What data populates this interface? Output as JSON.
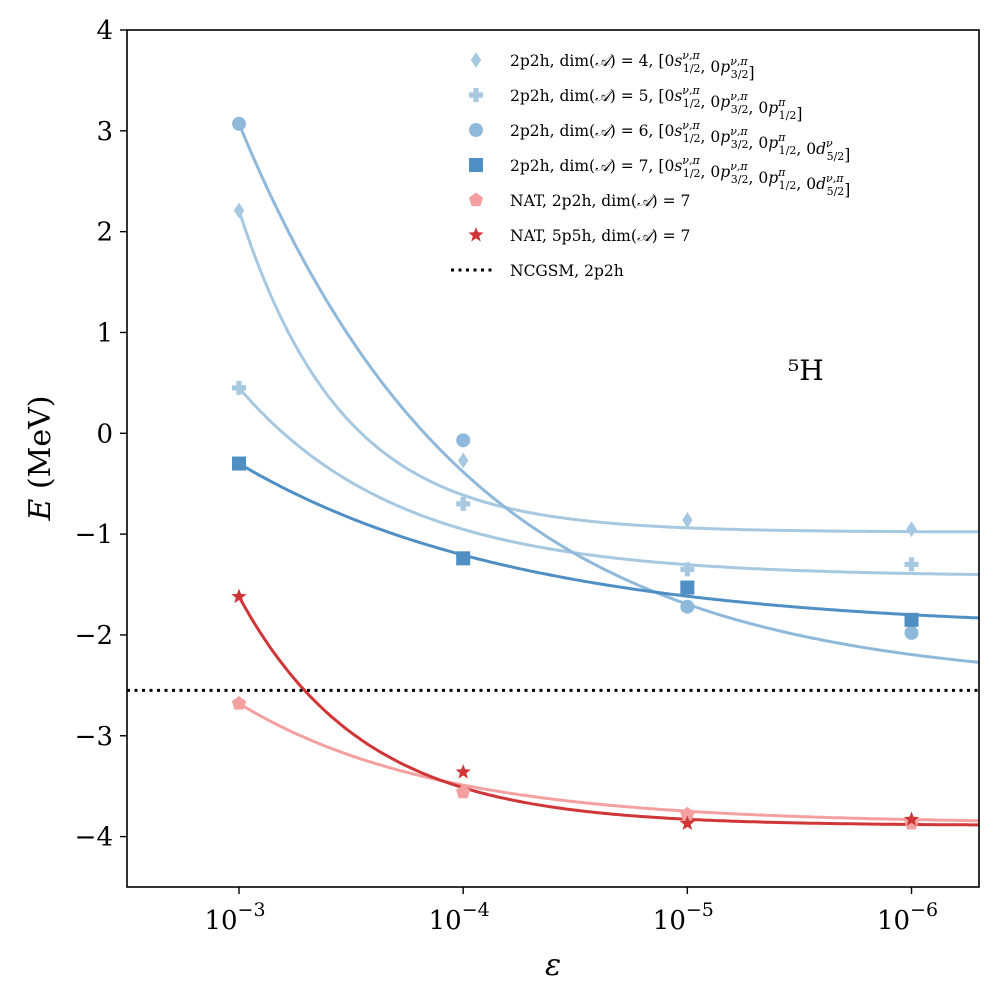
{
  "chart_data": {
    "type": "line",
    "title": "",
    "annotation": {
      "nucleus_label": "⁵H"
    },
    "xlabel": "ε",
    "ylabel_var": "E",
    "ylabel_unit": " (MeV)",
    "x_scale": "log",
    "x_reversed": true,
    "x": [
      0.001,
      0.0001,
      1e-05,
      1e-06
    ],
    "xlim": [
      0.00316,
      5e-07
    ],
    "x_tick_values": [
      0.001,
      0.0001,
      1e-05,
      1e-06
    ],
    "x_tick_exponents": [
      "−3",
      "−4",
      "−5",
      "−6"
    ],
    "x_tick_base": "10",
    "ylim": [
      -4.5,
      4.0
    ],
    "y_ticks": [
      4,
      3,
      2,
      1,
      0,
      -1,
      -2,
      -3,
      -4
    ],
    "y_tick_labels": [
      "4",
      "3",
      "2",
      "1",
      "0",
      "−1",
      "−2",
      "−3",
      "−4"
    ],
    "grid": false,
    "legend_position": "top-right",
    "series": [
      {
        "name": "2p2h, dim(𝒜) = 4, [0sν,π 1/2, 0pν,π 3/2]",
        "legend": {
          "prefix": "2p2h, dim(",
          "A": "𝒜",
          "eq": ") = 4, [",
          "orbits": [
            {
              "n": "0",
              "l": "s",
              "sup": "ν,π",
              "sub": "1/2"
            },
            {
              "n": "0",
              "l": "p",
              "sup": "ν,π",
              "sub": "3/2"
            }
          ]
        },
        "marker": "diamond",
        "color": "#a6c8e0",
        "values": [
          2.21,
          -0.27,
          -0.86,
          -0.95
        ],
        "fit": {
          "a": -0.98,
          "b": 3.19,
          "r": 0.115
        }
      },
      {
        "name": "2p2h, dim(𝒜) = 5, [0sν,π 1/2, 0pν,π 3/2, 0pπ 1/2]",
        "legend": {
          "prefix": "2p2h, dim(",
          "A": "𝒜",
          "eq": ") = 5, [",
          "orbits": [
            {
              "n": "0",
              "l": "s",
              "sup": "ν,π",
              "sub": "1/2"
            },
            {
              "n": "0",
              "l": "p",
              "sup": "ν,π",
              "sub": "3/2"
            },
            {
              "n": "0",
              "l": "p",
              "sup": "π",
              "sub": "1/2"
            }
          ]
        },
        "marker": "plus",
        "color": "#a6c8e0",
        "values": [
          0.45,
          -0.7,
          -1.35,
          -1.3
        ],
        "fit": {
          "a": -1.42,
          "b": 1.87,
          "r": 0.25
        }
      },
      {
        "name": "2p2h, dim(𝒜) = 6, [0sν,π 1/2, 0pν,π 3/2, 0pπ 1/2, 0dν 5/2]",
        "legend": {
          "prefix": "2p2h, dim(",
          "A": "𝒜",
          "eq": ") = 6, [",
          "orbits": [
            {
              "n": "0",
              "l": "s",
              "sup": "ν,π",
              "sub": "1/2"
            },
            {
              "n": "0",
              "l": "p",
              "sup": "ν,π",
              "sub": "3/2"
            },
            {
              "n": "0",
              "l": "p",
              "sup": "π",
              "sub": "1/2"
            },
            {
              "n": "0",
              "l": "d",
              "sup": "ν",
              "sub": "5/2"
            }
          ]
        },
        "marker": "circle",
        "color": "#8fb9db",
        "values": [
          3.07,
          -0.07,
          -1.72,
          -1.98
        ],
        "fit": {
          "a": -2.5,
          "b": 5.57,
          "r": 0.38
        }
      },
      {
        "name": "2p2h, dim(𝒜) = 7, [0sν,π 1/2, 0pν,π 3/2, 0pπ 1/2, 0dν,π 5/2]",
        "legend": {
          "prefix": "2p2h, dim(",
          "A": "𝒜",
          "eq": ") = 7, [",
          "orbits": [
            {
              "n": "0",
              "l": "s",
              "sup": "ν,π",
              "sub": "1/2"
            },
            {
              "n": "0",
              "l": "p",
              "sup": "ν,π",
              "sub": "3/2"
            },
            {
              "n": "0",
              "l": "p",
              "sup": "π",
              "sub": "1/2"
            },
            {
              "n": "0",
              "l": "d",
              "sup": "ν,π",
              "sub": "5/2"
            }
          ]
        },
        "marker": "square",
        "color": "#4f8fc4",
        "values": [
          -0.3,
          -1.24,
          -1.53,
          -1.85
        ],
        "fit": {
          "a": -1.95,
          "b": 1.65,
          "r": 0.45
        }
      },
      {
        "name": "NAT, 2p2h, dim(𝒜) = 7",
        "legend": {
          "prefix": "NAT, 2p2h, dim(",
          "A": "𝒜",
          "eq": ") = 7",
          "orbits": []
        },
        "marker": "pentagon",
        "color": "#f5a0a0",
        "values": [
          -2.68,
          -3.56,
          -3.78,
          -3.87
        ],
        "fit": {
          "a": -3.87,
          "b": 1.19,
          "r": 0.32
        }
      },
      {
        "name": "NAT, 5p5h, dim(𝒜) = 7",
        "legend": {
          "prefix": "NAT, 5p5h, dim(",
          "A": "𝒜",
          "eq": ") = 7",
          "orbits": []
        },
        "marker": "star",
        "color": "#d03537",
        "values": [
          -1.62,
          -3.36,
          -3.87,
          -3.83
        ],
        "fit": {
          "a": -3.89,
          "b": 2.27,
          "r": 0.165
        }
      }
    ],
    "hlines": [
      {
        "name": "NCGSM, 2p2h",
        "y": -2.55,
        "style": "dotted",
        "color": "#000000"
      }
    ]
  }
}
